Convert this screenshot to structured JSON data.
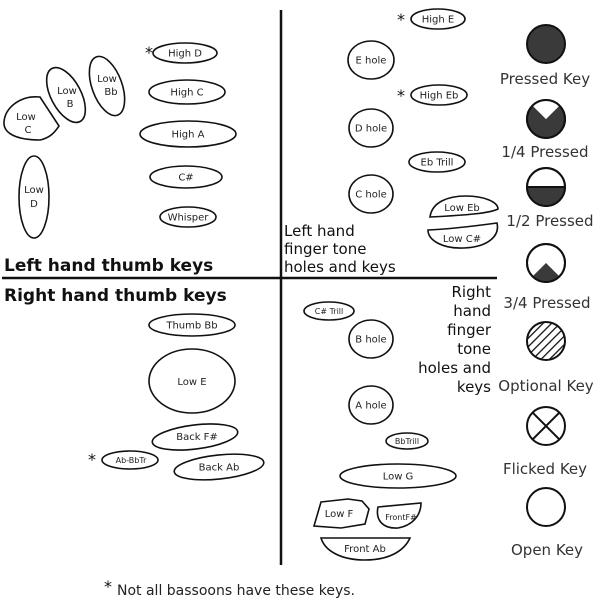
{
  "left_thumb": {
    "section_label": "Left hand thumb keys",
    "keys": {
      "high_d": "High D",
      "high_c": "High C",
      "high_a": "High A",
      "c_sharp": "C#",
      "whisper": "Whisper",
      "low_c": [
        "Low",
        "C"
      ],
      "low_b": [
        "Low",
        "B"
      ],
      "low_bb": [
        "Low",
        "Bb"
      ],
      "low_d": [
        "Low",
        "D"
      ]
    }
  },
  "right_thumb": {
    "section_label": "Right hand thumb keys",
    "keys": {
      "thumb_bb": "Thumb Bb",
      "low_e": "Low E",
      "back_f_sharp": "Back F#",
      "ab_bbtr": "Ab-BbTr",
      "back_ab": "Back Ab"
    }
  },
  "left_finger": {
    "label_lines": [
      "Left hand",
      "finger tone",
      "holes and keys"
    ],
    "keys": {
      "high_e": "High E",
      "e_hole": "E hole",
      "high_eb": "High Eb",
      "d_hole": "D hole",
      "eb_trill": "Eb Trill",
      "c_hole": "C hole",
      "low_eb": "Low Eb",
      "low_c_sharp": "Low C#"
    }
  },
  "right_finger": {
    "label_lines": [
      "Right",
      "hand",
      "finger",
      "tone",
      "holes and",
      "keys"
    ],
    "keys": {
      "c_sharp_trill": "C# Trill",
      "b_hole": "B hole",
      "a_hole": "A hole",
      "bb_trill": "BbTrill",
      "low_g": "Low G",
      "low_f": "Low F",
      "front_f_sharp": "FrontF#",
      "front_ab": "Front Ab"
    }
  },
  "legend": {
    "items": [
      {
        "label": "Pressed Key",
        "icon": "pressed-key-icon"
      },
      {
        "label": "1/4 Pressed",
        "icon": "quarter-pressed-icon"
      },
      {
        "label": "1/2 Pressed",
        "icon": "half-pressed-icon"
      },
      {
        "label": "3/4 Pressed",
        "icon": "three-quarter-pressed-icon"
      },
      {
        "label": "Optional Key",
        "icon": "optional-key-icon"
      },
      {
        "label": "Flicked Key",
        "icon": "flicked-key-icon"
      },
      {
        "label": "Open Key",
        "icon": "open-key-icon"
      }
    ]
  },
  "asterisk": "*",
  "footnote": "Not all bassoons have these keys.",
  "colors": {
    "ink": "#111111",
    "pressed": "#3a3a3a",
    "background": "#ffffff"
  }
}
